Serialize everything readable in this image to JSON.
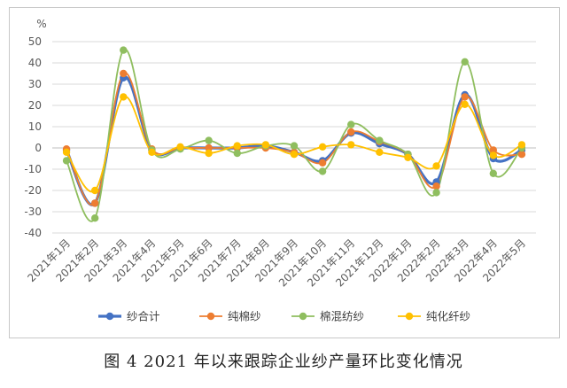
{
  "caption": "图 4   2021 年以来跟踪企业纱产量环比变化情况",
  "chart_data": {
    "type": "line",
    "unit_label": "%",
    "ylim": [
      -40,
      50
    ],
    "yticks": [
      50,
      40,
      30,
      20,
      10,
      0,
      -10,
      -20,
      -30,
      -40
    ],
    "categories": [
      "2021年1月",
      "2021年2月",
      "2021年3月",
      "2021年4月",
      "2021年5月",
      "2021年6月",
      "2021年7月",
      "2021年8月",
      "2021年9月",
      "2021年10月",
      "2021年11月",
      "2021年12月",
      "2022年1月",
      "2022年2月",
      "2022年3月",
      "2022年4月",
      "2022年5月"
    ],
    "grid": true,
    "legend_position": "bottom",
    "series": [
      {
        "name": "纱合计",
        "color": "#4472C4",
        "width": 3.2,
        "values": [
          -1,
          -26,
          33,
          -1,
          0,
          0,
          0,
          1,
          -2,
          -6,
          7,
          2,
          -3,
          -16,
          25,
          -5,
          -1
        ]
      },
      {
        "name": "纯棉纱",
        "color": "#ED7D31",
        "width": 1.8,
        "values": [
          -0.5,
          -26,
          35,
          -0.5,
          0,
          0,
          0,
          0,
          -2,
          -7,
          7.5,
          3,
          -3,
          -18,
          24,
          -1,
          -3
        ]
      },
      {
        "name": "棉混纺纱",
        "color": "#8FBE5F",
        "width": 1.8,
        "values": [
          -6,
          -33,
          46,
          -1,
          -0.5,
          3.5,
          -2.5,
          1,
          1,
          -11,
          11,
          3.5,
          -3,
          -21,
          40.5,
          -12,
          0
        ]
      },
      {
        "name": "纯化纤纱",
        "color": "#FFC000",
        "width": 1.8,
        "values": [
          -2,
          -20,
          24,
          -2,
          0.5,
          -2.5,
          1,
          1.5,
          -3,
          0.5,
          1.5,
          -2,
          -4.5,
          -8.5,
          20.5,
          -3.5,
          1.5
        ]
      }
    ]
  }
}
